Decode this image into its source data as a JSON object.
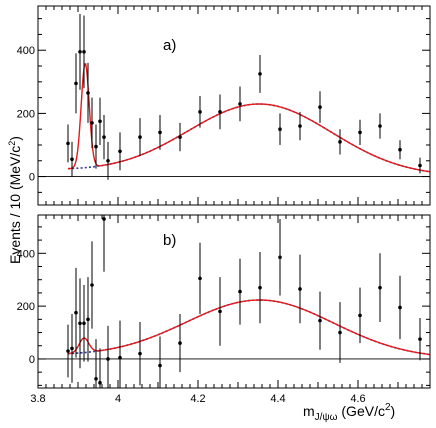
{
  "chart_data": [
    {
      "type": "scatter",
      "panel_label": "a)",
      "title": "",
      "xlabel": "m",
      "xlabel_sub": "J/ψω",
      "xlabel_unit": "(GeV/c",
      "xlabel_unit_sup": "2",
      "xlabel_unit_close": ")",
      "ylabel": "Events / 10 (MeV/c",
      "ylabel_sup": "2",
      "ylabel_close": ")",
      "xlim": [
        3.8,
        4.78
      ],
      "ylim": [
        -90,
        540
      ],
      "yticks": [
        0,
        200,
        400
      ],
      "ytick_labels": [
        "0",
        "200",
        "400"
      ],
      "xticks": [
        3.8,
        4.0,
        4.2,
        4.4,
        4.6
      ],
      "xtick_labels": [
        "3.8",
        "4",
        "4.2",
        "4.4",
        "4.6"
      ],
      "series": [
        {
          "kind": "points",
          "x": [
            3.875,
            3.885,
            3.895,
            3.905,
            3.915,
            3.925,
            3.935,
            3.945,
            3.955,
            3.965,
            3.975,
            4.005,
            4.055,
            4.105,
            4.155,
            4.205,
            4.255,
            4.305,
            4.355,
            4.405,
            4.455,
            4.505,
            4.555,
            4.605,
            4.655,
            4.705,
            4.755
          ],
          "y": [
            105,
            55,
            295,
            395,
            395,
            265,
            170,
            95,
            175,
            125,
            50,
            80,
            125,
            140,
            125,
            205,
            205,
            230,
            325,
            150,
            160,
            220,
            110,
            140,
            160,
            85,
            35
          ],
          "err": [
            60,
            55,
            95,
            120,
            115,
            95,
            80,
            70,
            75,
            70,
            60,
            60,
            60,
            55,
            45,
            50,
            55,
            55,
            60,
            50,
            45,
            50,
            40,
            40,
            40,
            30,
            25
          ]
        },
        {
          "kind": "fit",
          "model": "Gaussian peak on smooth background",
          "peak_mean": 3.918,
          "peak_width": 0.01,
          "peak_height": 330,
          "bkg_threshold": 3.875,
          "bkg_max_pos": 4.355,
          "bkg_max": 225,
          "bkg_sigma": 0.18,
          "bkg_start": 25
        }
      ]
    },
    {
      "type": "scatter",
      "panel_label": "b)",
      "title": "",
      "xlabel": "m",
      "xlabel_sub": "J/ψω",
      "xlabel_unit": "(GeV/c",
      "xlabel_unit_sup": "2",
      "xlabel_unit_close": ")",
      "ylabel": "Events / 10 (MeV/c",
      "ylabel_sup": "2",
      "ylabel_close": ")",
      "xlim": [
        3.8,
        4.78
      ],
      "ylim": [
        -110,
        545
      ],
      "yticks": [
        0,
        200,
        400
      ],
      "ytick_labels": [
        "0",
        "200",
        "400"
      ],
      "xticks": [
        3.8,
        4.0,
        4.2,
        4.4,
        4.6
      ],
      "xtick_labels": [
        "3.8",
        "4",
        "4.2",
        "4.4",
        "4.6"
      ],
      "series": [
        {
          "kind": "points",
          "x": [
            3.875,
            3.885,
            3.895,
            3.905,
            3.915,
            3.925,
            3.935,
            3.945,
            3.955,
            3.965,
            3.975,
            4.005,
            4.055,
            4.105,
            4.155,
            4.205,
            4.255,
            4.305,
            4.355,
            4.405,
            4.455,
            4.505,
            4.555,
            4.605,
            4.655,
            4.705,
            4.755
          ],
          "y": [
            30,
            40,
            175,
            135,
            135,
            150,
            280,
            -75,
            -90,
            530,
            0,
            5,
            20,
            -25,
            60,
            305,
            180,
            255,
            270,
            385,
            265,
            145,
            100,
            165,
            270,
            195,
            75
          ],
          "err": [
            100,
            130,
            170,
            170,
            145,
            160,
            165,
            150,
            130,
            200,
            125,
            140,
            120,
            110,
            110,
            135,
            130,
            125,
            135,
            145,
            130,
            110,
            115,
            105,
            130,
            120,
            80
          ]
        },
        {
          "kind": "fit",
          "model": "smooth shape with small threshold bump",
          "peak_mean": 3.915,
          "peak_width": 0.012,
          "peak_height": 55,
          "bkg_threshold": 3.875,
          "bkg_max_pos": 4.355,
          "bkg_max": 220,
          "bkg_sigma": 0.185,
          "bkg_start": 20
        }
      ]
    }
  ]
}
